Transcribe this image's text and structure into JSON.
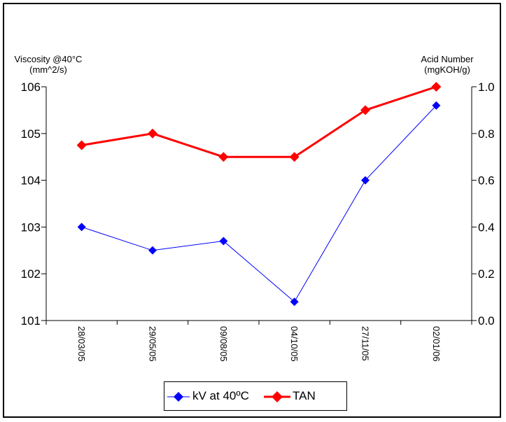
{
  "chart_data": {
    "type": "line",
    "categories": [
      "28/03/05",
      "29/05/05",
      "09/08/05",
      "04/10/05",
      "27/11/05",
      "02/01/06"
    ],
    "y_left": {
      "label_line1": "Viscosity @40°C",
      "label_line2": "(mm^2/s)",
      "ylim": [
        101,
        106
      ],
      "ticks": [
        "101",
        "102",
        "103",
        "104",
        "105",
        "106"
      ],
      "tick_values": [
        101,
        102,
        103,
        104,
        105,
        106
      ]
    },
    "y_right": {
      "label_line1": "Acid Number",
      "label_line2": "(mgKOH/g)",
      "ylim": [
        0.0,
        1.0
      ],
      "ticks": [
        "0.0",
        "0.2",
        "0.4",
        "0.6",
        "0.8",
        "1.0"
      ],
      "tick_values": [
        0.0,
        0.2,
        0.4,
        0.6,
        0.8,
        1.0
      ]
    },
    "series": [
      {
        "name": "kV at 40ºC",
        "axis": "left",
        "color": "#0000ff",
        "values": [
          103.0,
          102.5,
          102.7,
          101.4,
          104.0,
          105.6
        ]
      },
      {
        "name": "TAN",
        "axis": "right",
        "color": "#ff0000",
        "values": [
          0.75,
          0.8,
          0.7,
          0.7,
          0.9,
          1.0
        ]
      }
    ],
    "legend_position": "bottom-center",
    "grid": false
  }
}
